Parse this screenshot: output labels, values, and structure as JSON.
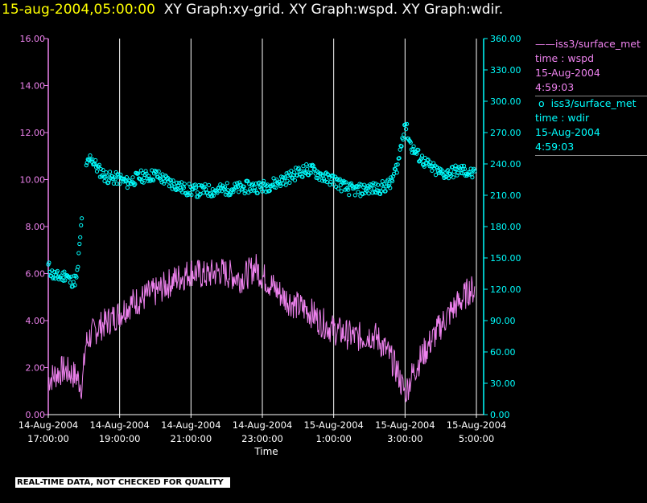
{
  "header": {
    "timestamp": "15-aug-2004,05:00:00",
    "graphs": "XY Graph:xy-grid.  XY Graph:wspd.  XY Graph:wdir."
  },
  "legend": {
    "wspd": {
      "symbol": "——",
      "source": "iss3/surface_met",
      "vars": "time : wspd",
      "date": "15-Aug-2004",
      "time": "4:59:03"
    },
    "wdir": {
      "symbol": "o",
      "source": "iss3/surface_met",
      "vars": "time : wdir",
      "date": "15-Aug-2004",
      "time": "4:59:03"
    }
  },
  "banner": "REAL-TIME DATA, NOT CHECKED FOR QUALITY",
  "colors": {
    "wspd": "#ee82ee",
    "wdir": "#00ffff",
    "grid": "#ffffff",
    "timestamp": "#ffff00"
  },
  "chart_data": {
    "type": "line+scatter",
    "xlabel": "Time",
    "x_range_hours": [
      17.0,
      29.0
    ],
    "x_ticks": [
      {
        "hour": 17,
        "date": "14-Aug-2004",
        "time": "17:00:00"
      },
      {
        "hour": 19,
        "date": "14-Aug-2004",
        "time": "19:00:00"
      },
      {
        "hour": 21,
        "date": "14-Aug-2004",
        "time": "21:00:00"
      },
      {
        "hour": 23,
        "date": "14-Aug-2004",
        "time": "23:00:00"
      },
      {
        "hour": 25,
        "date": "15-Aug-2004",
        "time": "1:00:00"
      },
      {
        "hour": 27,
        "date": "15-Aug-2004",
        "time": "3:00:00"
      },
      {
        "hour": 29,
        "date": "15-Aug-2004",
        "time": "5:00:00"
      }
    ],
    "left_axis": {
      "ylim": [
        0,
        16
      ],
      "ticks": [
        "0.00",
        "2.00",
        "4.00",
        "6.00",
        "8.00",
        "10.00",
        "12.00",
        "14.00",
        "16.00"
      ]
    },
    "right_axis": {
      "ylim": [
        0,
        360
      ],
      "ticks": [
        "0.00",
        "30.00",
        "60.00",
        "90.00",
        "120.00",
        "150.00",
        "180.00",
        "210.00",
        "240.00",
        "270.00",
        "300.00",
        "330.00",
        "360.00"
      ]
    },
    "series": [
      {
        "name": "wspd",
        "axis": "left",
        "style": "line",
        "x": [
          17.0,
          17.2,
          17.4,
          17.6,
          17.8,
          17.95,
          18.05,
          18.2,
          18.4,
          18.6,
          18.8,
          19.0,
          19.2,
          19.4,
          19.6,
          19.8,
          20.0,
          20.2,
          20.4,
          20.6,
          20.8,
          21.0,
          21.2,
          21.4,
          21.6,
          21.8,
          22.0,
          22.2,
          22.4,
          22.6,
          22.8,
          23.0,
          23.2,
          23.4,
          23.6,
          23.8,
          24.0,
          24.2,
          24.4,
          24.6,
          24.8,
          25.0,
          25.2,
          25.4,
          25.6,
          25.8,
          26.0,
          26.2,
          26.4,
          26.6,
          26.8,
          26.9,
          27.0,
          27.2,
          27.4,
          27.6,
          27.8,
          28.0,
          28.2,
          28.4,
          28.6,
          28.8,
          28.95
        ],
        "y": [
          1.5,
          1.7,
          1.9,
          1.8,
          1.6,
          1.2,
          3.0,
          3.4,
          3.7,
          3.9,
          4.1,
          4.3,
          4.6,
          4.8,
          4.9,
          5.1,
          5.2,
          5.4,
          5.6,
          5.8,
          5.9,
          6.1,
          6.0,
          5.9,
          6.0,
          6.1,
          6.0,
          5.9,
          5.8,
          6.0,
          6.3,
          5.9,
          5.6,
          5.3,
          5.0,
          4.8,
          4.6,
          4.5,
          4.3,
          4.0,
          3.8,
          3.6,
          3.5,
          3.4,
          3.3,
          3.3,
          3.4,
          3.3,
          2.9,
          2.4,
          1.8,
          1.3,
          0.9,
          1.7,
          2.3,
          2.8,
          3.3,
          3.8,
          4.2,
          4.6,
          4.9,
          5.3,
          5.3
        ]
      },
      {
        "name": "wdir",
        "axis": "right",
        "style": "scatter",
        "x": [
          17.0,
          17.1,
          17.2,
          17.3,
          17.4,
          17.5,
          17.6,
          17.7,
          17.8,
          17.9,
          18.0,
          18.1,
          18.2,
          18.3,
          18.4,
          18.6,
          18.8,
          19.0,
          19.2,
          19.4,
          19.6,
          19.8,
          20.0,
          20.2,
          20.4,
          20.6,
          20.8,
          21.0,
          21.2,
          21.4,
          21.6,
          21.8,
          22.0,
          22.2,
          22.4,
          22.6,
          22.8,
          23.0,
          23.2,
          23.4,
          23.6,
          23.8,
          24.0,
          24.2,
          24.4,
          24.6,
          24.8,
          25.0,
          25.2,
          25.4,
          25.6,
          25.8,
          26.0,
          26.2,
          26.4,
          26.6,
          26.8,
          26.9,
          27.0,
          27.1,
          27.2,
          27.4,
          27.6,
          27.8,
          28.0,
          28.2,
          28.4,
          28.6,
          28.8,
          28.95
        ],
        "y": [
          142,
          135,
          132,
          132,
          132,
          135,
          128,
          128,
          130,
          170,
          222,
          240,
          247,
          240,
          235,
          228,
          226,
          226,
          222,
          225,
          228,
          228,
          230,
          226,
          222,
          220,
          216,
          215,
          214,
          215,
          214,
          215,
          216,
          216,
          217,
          218,
          218,
          218,
          220,
          222,
          225,
          228,
          232,
          234,
          234,
          230,
          226,
          225,
          220,
          216,
          215,
          215,
          217,
          216,
          218,
          221,
          240,
          260,
          280,
          265,
          255,
          247,
          240,
          235,
          231,
          231,
          233,
          234,
          232,
          229
        ]
      }
    ]
  }
}
